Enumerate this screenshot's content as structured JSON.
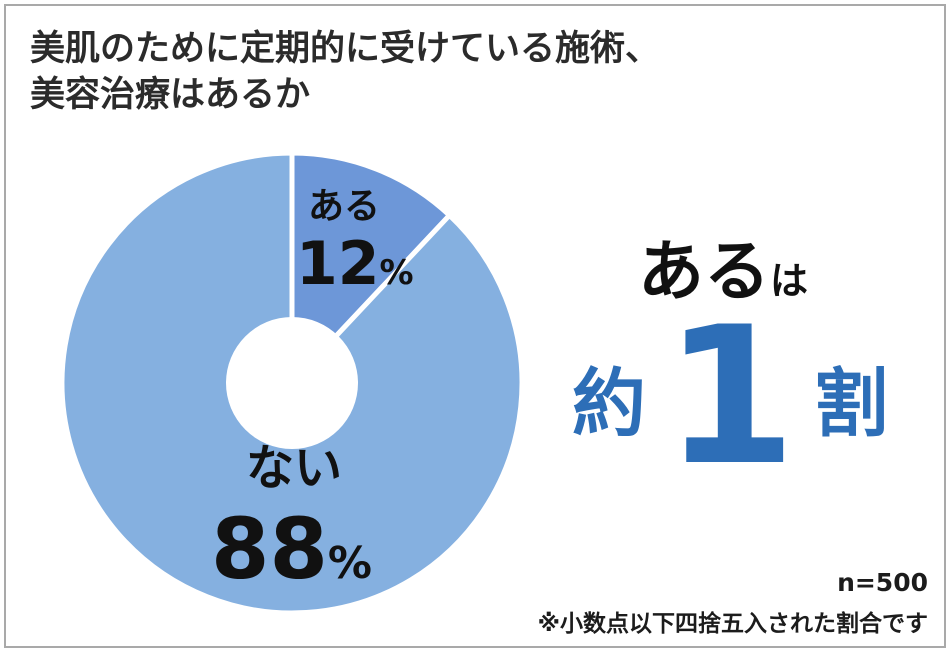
{
  "title": {
    "line1": "美肌のために定期的に受けている施術、",
    "line2": "美容治療はあるか"
  },
  "chart_data": {
    "type": "pie",
    "slices": [
      {
        "label": "ある",
        "value": 12,
        "value_text": "12",
        "unit": "%",
        "color": "#6d97d8"
      },
      {
        "label": "ない",
        "value": 88,
        "value_text": "88",
        "unit": "%",
        "color": "#85b0e0"
      }
    ],
    "donut_hole": true,
    "slice_border_color": "#ffffff"
  },
  "summary": {
    "line1_main": "ある",
    "line1_small": "は",
    "prefix": "約",
    "number": "1",
    "suffix": "割",
    "main_color": "#111111",
    "accent_color": "#2d6eb7"
  },
  "sample_size": "n=500",
  "footnote": "※小数点以下四捨五入された割合です",
  "colors": {
    "frame_border": "#a9a9a9",
    "background": "#ffffff"
  }
}
